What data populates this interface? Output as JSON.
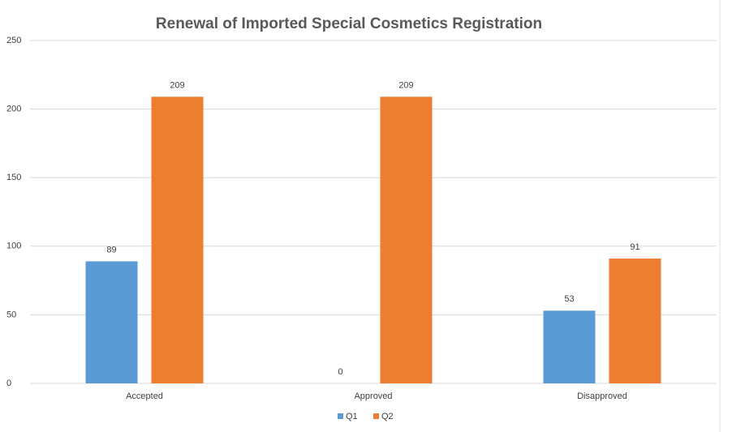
{
  "chart_data": {
    "type": "bar",
    "title": "Renewal of Imported Special Cosmetics Registration",
    "categories": [
      "Accepted",
      "Approved",
      "Disapproved"
    ],
    "series": [
      {
        "name": "Q1",
        "color": "#5b9bd5",
        "values": [
          89,
          0,
          53
        ]
      },
      {
        "name": "Q2",
        "color": "#ed7d31",
        "values": [
          209,
          209,
          91
        ]
      }
    ],
    "ylim": [
      0,
      250
    ],
    "yticks": [
      0,
      50,
      100,
      150,
      200,
      250
    ],
    "grid": true,
    "legend": "bottom"
  }
}
